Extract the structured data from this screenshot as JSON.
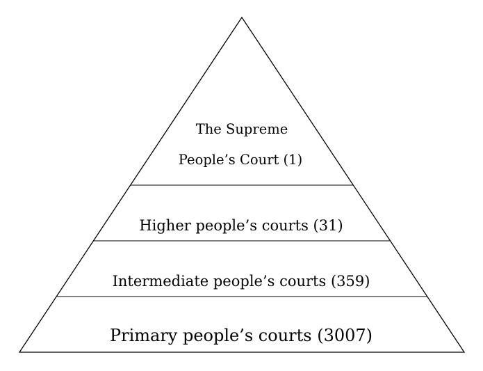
{
  "diagram": {
    "tiers": [
      {
        "lines": [
          "The Supreme",
          "People’s Court (1)"
        ]
      },
      {
        "lines": [
          "Higher people’s courts (31)"
        ]
      },
      {
        "lines": [
          "Intermediate people’s courts (359)"
        ]
      },
      {
        "lines": [
          "Primary people’s courts (3007)"
        ]
      }
    ],
    "colors": {
      "stroke": "#000000",
      "fill": "#ffffff",
      "text": "#000000"
    }
  }
}
